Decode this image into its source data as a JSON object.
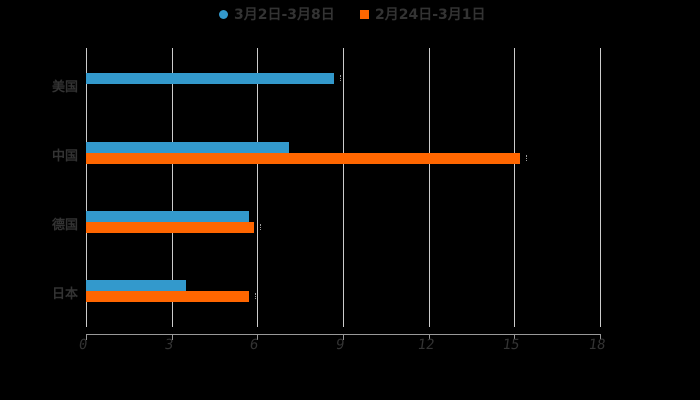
{
  "chart_data": {
    "type": "bar",
    "orientation": "horizontal",
    "title": "",
    "xlabel": "",
    "ylabel": "",
    "categories": [
      "美国",
      "中国",
      "德国",
      "日本"
    ],
    "series": [
      {
        "name": "3月2日-3月8日",
        "color": "#3399cc",
        "values": [
          8.7,
          7.1,
          5.7,
          3.5
        ]
      },
      {
        "name": "2月24日-3月1日",
        "color": "#ff6600",
        "values": [
          null,
          15.2,
          5.9,
          5.7
        ]
      }
    ],
    "xlim": [
      0,
      18
    ],
    "x_ticks": [
      "0",
      "3",
      "6",
      "9",
      "12",
      "15",
      "18"
    ],
    "grid": true,
    "legend_position": "top"
  },
  "legend": {
    "series1": "3月2日-3月8日",
    "series2": "2月24日-3月1日"
  }
}
